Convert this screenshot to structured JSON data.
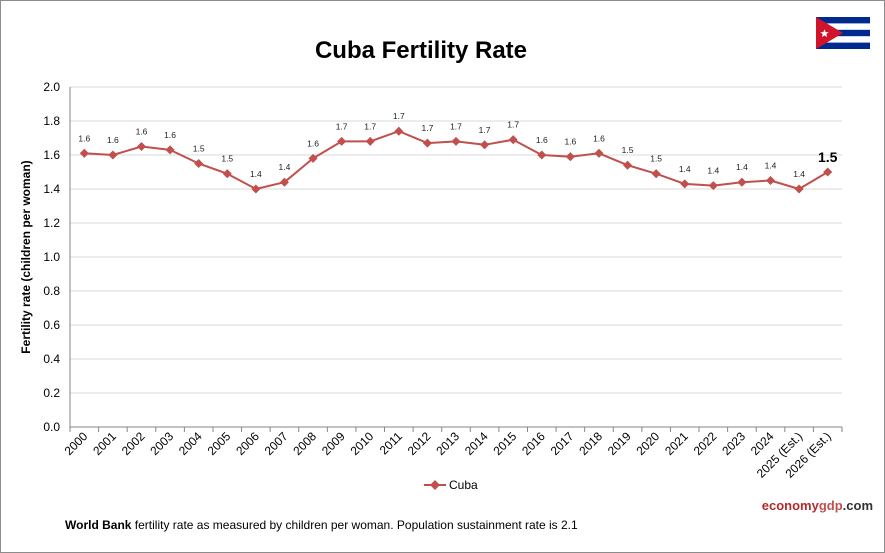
{
  "chart_data": {
    "type": "line",
    "title": "Cuba Fertility Rate",
    "xlabel": "",
    "ylabel": "Fertility rate (children per woman)",
    "ylim": [
      0,
      2.0
    ],
    "yticks": [
      "0.0",
      "0.2",
      "0.4",
      "0.6",
      "0.8",
      "1.0",
      "1.2",
      "1.4",
      "1.6",
      "1.8",
      "2.0"
    ],
    "grid": true,
    "legend_position": "bottom",
    "categories": [
      "2000",
      "2001",
      "2002",
      "2003",
      "2004",
      "2005",
      "2006",
      "2007",
      "2008",
      "2009",
      "2010",
      "2011",
      "2012",
      "2013",
      "2014",
      "2015",
      "2016",
      "2017",
      "2018",
      "2019",
      "2020",
      "2021",
      "2022",
      "2023",
      "2024",
      "2025 (Est.)",
      "2026 (Est.)"
    ],
    "series": [
      {
        "name": "Cuba",
        "color": "#c0504d",
        "values": [
          1.61,
          1.6,
          1.65,
          1.63,
          1.55,
          1.49,
          1.4,
          1.44,
          1.58,
          1.68,
          1.68,
          1.74,
          1.67,
          1.68,
          1.66,
          1.69,
          1.6,
          1.59,
          1.61,
          1.54,
          1.49,
          1.43,
          1.42,
          1.44,
          1.45,
          1.4,
          1.5
        ],
        "labels": [
          "1.6",
          "1.6",
          "1.6",
          "1.6",
          "1.5",
          "1.5",
          "1.4",
          "1.4",
          "1.6",
          "1.7",
          "1.7",
          "1.7",
          "1.7",
          "1.7",
          "1.7",
          "1.7",
          "1.6",
          "1.6",
          "1.6",
          "1.5",
          "1.5",
          "1.4",
          "1.4",
          "1.4",
          "1.4",
          "1.4",
          "1.5"
        ]
      }
    ]
  },
  "footer": {
    "source_bold": "World Bank",
    "source_text": " fertility rate as measured  by children per woman.  Population sustainment rate is 2.1"
  },
  "brand": {
    "part1": "economy",
    "part2": "gdp",
    "part3": ".com"
  },
  "flag": {
    "icon": "cuba-flag-icon",
    "blue": "#002a8f",
    "red": "#cf142b",
    "white": "#ffffff"
  }
}
